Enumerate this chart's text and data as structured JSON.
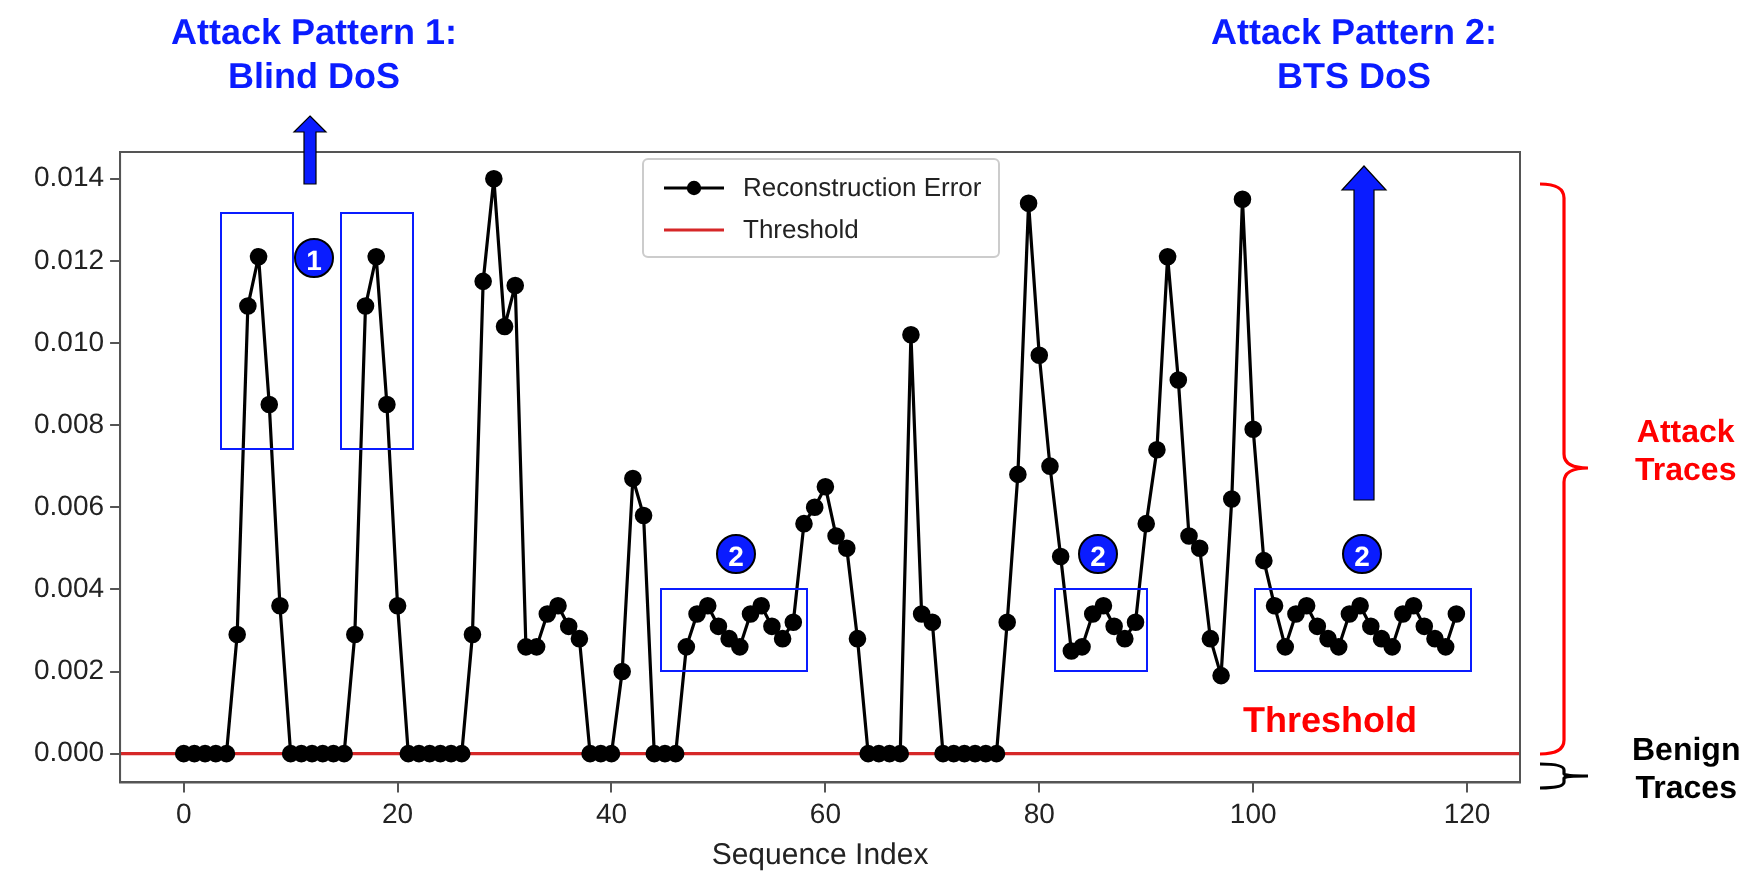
{
  "chart_data": {
    "type": "line",
    "xlabel": "Sequence Index",
    "x": [
      0,
      1,
      2,
      3,
      4,
      5,
      6,
      7,
      8,
      9,
      10,
      11,
      12,
      13,
      14,
      15,
      16,
      17,
      18,
      19,
      20,
      21,
      22,
      23,
      24,
      25,
      26,
      27,
      28,
      29,
      30,
      31,
      32,
      33,
      34,
      35,
      36,
      37,
      38,
      39,
      40,
      41,
      42,
      43,
      44,
      45,
      46,
      47,
      48,
      49,
      50,
      51,
      52,
      53,
      54,
      55,
      56,
      57,
      58,
      59,
      60,
      61,
      62,
      63,
      64,
      65,
      66,
      67,
      68,
      69,
      70,
      71,
      72,
      73,
      74,
      75,
      76,
      77,
      78,
      79,
      80,
      81,
      82,
      83,
      84,
      85,
      86,
      87,
      88,
      89,
      90,
      91,
      92,
      93,
      94,
      95,
      96,
      97,
      98,
      99,
      100,
      101,
      102,
      103,
      104,
      105,
      106,
      107,
      108,
      109,
      110,
      111,
      112,
      113,
      114,
      115,
      116,
      117,
      118,
      119
    ],
    "series": [
      {
        "name": "Reconstruction Error",
        "color": "#000000",
        "marker": "circle",
        "values": [
          0,
          0,
          0,
          0,
          0,
          0.0029,
          0.0109,
          0.0121,
          0.0085,
          0.0036,
          0,
          0,
          0,
          0,
          0,
          0,
          0.0029,
          0.0109,
          0.0121,
          0.0085,
          0.0036,
          0,
          0,
          0,
          0,
          0,
          0,
          0.0029,
          0.0115,
          0.014,
          0.0104,
          0.0114,
          0.0026,
          0.0026,
          0.0034,
          0.0036,
          0.0031,
          0.0028,
          0,
          0,
          0,
          0.002,
          0.0067,
          0.0058,
          0,
          0,
          0,
          0.0026,
          0.0034,
          0.0036,
          0.0031,
          0.0028,
          0.0026,
          0.0034,
          0.0036,
          0.0031,
          0.0028,
          0.0032,
          0.0056,
          0.006,
          0.0065,
          0.0053,
          0.005,
          0.0028,
          0,
          0,
          0,
          0,
          0.0102,
          0.0034,
          0.0032,
          0,
          0,
          0,
          0,
          0,
          0,
          0.0032,
          0.0068,
          0.0134,
          0.0097,
          0.007,
          0.0048,
          0.0025,
          0.0026,
          0.0034,
          0.0036,
          0.0031,
          0.0028,
          0.0032,
          0.0056,
          0.0074,
          0.0121,
          0.0091,
          0.0053,
          0.005,
          0.0028,
          0.0019,
          0.0062,
          0.0135,
          0.0079,
          0.0047,
          0.0036,
          0.0026,
          0.0034,
          0.0036,
          0.0031,
          0.0028,
          0.0026,
          0.0034,
          0.0036,
          0.0031,
          0.0028,
          0.0026,
          0.0034,
          0.0036,
          0.0031,
          0.0028,
          0.0026,
          0.0034
        ]
      },
      {
        "name": "Threshold",
        "color": "#d62728",
        "marker": "none",
        "x": [
          -5.95,
          124.95
        ],
        "values": [
          0,
          0
        ]
      }
    ],
    "xlim": [
      -5.95,
      124.95
    ],
    "xticks": [
      0,
      20,
      40,
      60,
      80,
      100,
      120
    ],
    "ylim": [
      -0.0007,
      0.01465
    ],
    "yticks": [
      {
        "value": 0,
        "label": "0.000"
      },
      {
        "value": 0.002,
        "label": "0.002"
      },
      {
        "value": 0.004,
        "label": "0.004"
      },
      {
        "value": 0.006,
        "label": "0.006"
      },
      {
        "value": 0.008,
        "label": "0.008"
      },
      {
        "value": 0.01,
        "label": "0.010"
      },
      {
        "value": 0.012,
        "label": "0.012"
      },
      {
        "value": 0.014,
        "label": "0.014"
      }
    ],
    "legend": "top",
    "annotations": [
      "Attack Pattern 1:\nBlind DoS",
      "Attack Pattern 2:\nBTS DoS",
      "Threshold",
      "Attack\nTraces",
      "Benign\nTraces",
      "1",
      "2",
      "2",
      "2"
    ]
  }
}
